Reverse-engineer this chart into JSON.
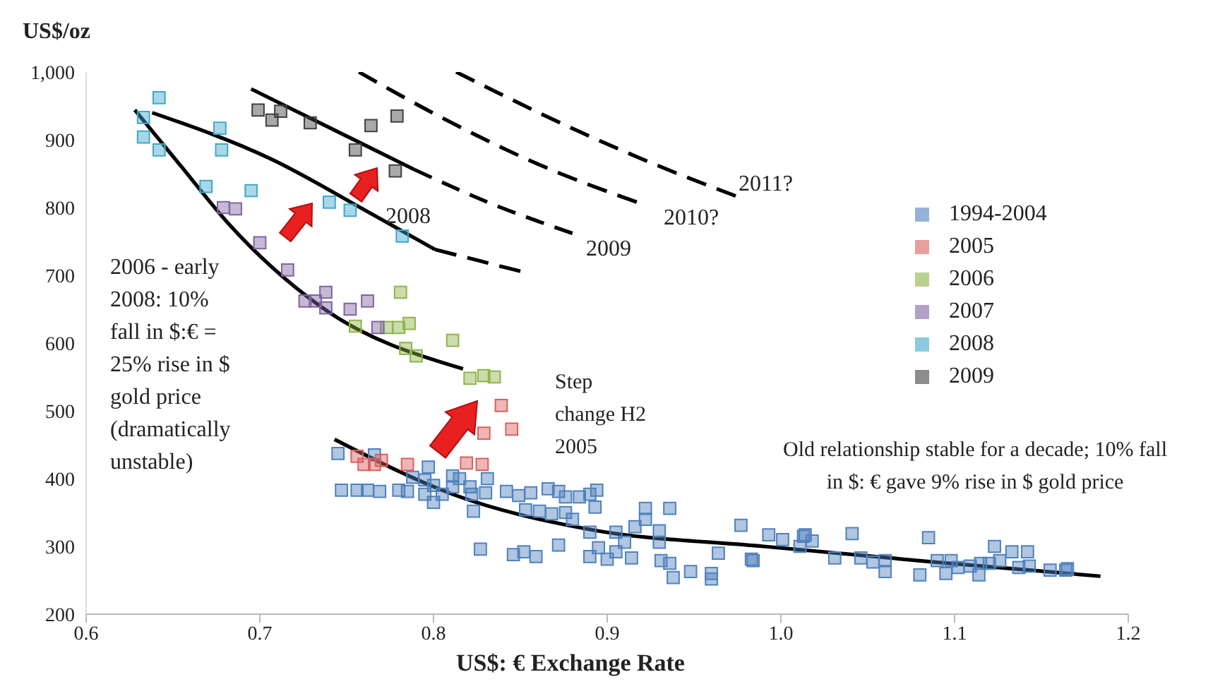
{
  "chart_data": {
    "type": "scatter",
    "xlabel": "US$: € Exchange Rate",
    "ylabel": "US$/oz",
    "xlim": [
      0.6,
      1.2
    ],
    "xticks": [
      0.6,
      0.7,
      0.8,
      0.9,
      {
        "value": 1,
        "label": "1.0"
      },
      1.1,
      1.2
    ],
    "ylim": [
      200,
      1000
    ],
    "yticks": [
      200,
      300,
      400,
      500,
      600,
      700,
      800,
      900,
      {
        "value": 1000,
        "label": "1,000"
      }
    ],
    "grid": false,
    "legend": "right",
    "marker": "square",
    "series": [
      {
        "name": "1994-2004",
        "color": "#4f81bd",
        "x": [
          0.745,
          0.747,
          0.756,
          0.762,
          0.769,
          0.766,
          0.78,
          0.785,
          0.788,
          0.795,
          0.797,
          0.795,
          0.8,
          0.8,
          0.805,
          0.811,
          0.815,
          0.811,
          0.821,
          0.822,
          0.823,
          0.83,
          0.831,
          0.827,
          0.842,
          0.849,
          0.856,
          0.846,
          0.852,
          0.859,
          0.853,
          0.861,
          0.866,
          0.872,
          0.876,
          0.868,
          0.876,
          0.88,
          0.872,
          0.884,
          0.89,
          0.894,
          0.893,
          0.89,
          0.89,
          0.895,
          0.9,
          0.905,
          0.91,
          0.916,
          0.922,
          0.922,
          0.93,
          0.93,
          0.936,
          0.931,
          0.936,
          0.938,
          0.948,
          0.96,
          0.96,
          0.964,
          0.977,
          0.983,
          0.914,
          0.905,
          0.993,
          1.001,
          1.013,
          1.014,
          1.018,
          1.011,
          0.984,
          1.031,
          1.041,
          1.046,
          1.053,
          1.06,
          1.06,
          1.08,
          1.085,
          1.09,
          1.095,
          1.098,
          1.102,
          1.109,
          1.114,
          1.115,
          1.12,
          1.123,
          1.126,
          1.133,
          1.137,
          1.142,
          1.143,
          1.155,
          1.165,
          1.164
        ],
        "values": [
          437,
          383,
          383,
          383,
          381,
          435,
          383,
          381,
          402,
          398,
          417,
          377,
          390,
          365,
          377,
          404,
          400,
          388,
          388,
          377,
          352,
          379,
          400,
          296,
          381,
          375,
          379,
          288,
          292,
          285,
          354,
          352,
          385,
          381,
          373,
          348,
          350,
          340,
          302,
          373,
          377,
          383,
          358,
          321,
          285,
          298,
          281,
          321,
          306,
          329,
          356,
          340,
          323,
          306,
          356,
          279,
          275,
          254,
          263,
          260,
          252,
          290,
          331,
          281,
          283,
          292,
          317,
          310,
          315,
          317,
          308,
          300,
          279,
          283,
          319,
          283,
          277,
          279,
          263,
          258,
          313,
          279,
          260,
          279,
          269,
          271,
          258,
          275,
          275,
          300,
          279,
          292,
          269,
          292,
          271,
          265,
          267,
          265
        ]
      },
      {
        "name": "2005",
        "color": "#d9605e",
        "x": [
          0.839,
          0.829,
          0.845,
          0.756,
          0.76,
          0.766,
          0.77,
          0.785,
          0.819,
          0.828
        ],
        "values": [
          508,
          467,
          473,
          433,
          421,
          421,
          427,
          421,
          423,
          421
        ]
      },
      {
        "name": "2006",
        "color": "#8eb44a",
        "x": [
          0.781,
          0.755,
          0.773,
          0.78,
          0.786,
          0.811,
          0.784,
          0.79,
          0.821,
          0.829,
          0.835
        ],
        "values": [
          675,
          625,
          623,
          623,
          629,
          604,
          592,
          581,
          548,
          552,
          550
        ]
      },
      {
        "name": "2007",
        "color": "#8064a2",
        "x": [
          0.679,
          0.686,
          0.7,
          0.716,
          0.726,
          0.732,
          0.738,
          0.738,
          0.752,
          0.762,
          0.768
        ],
        "values": [
          800,
          798,
          748,
          708,
          662,
          662,
          675,
          652,
          650,
          662,
          623
        ]
      },
      {
        "name": "2008",
        "color": "#3fa9c9",
        "x": [
          0.642,
          0.633,
          0.633,
          0.642,
          0.677,
          0.678,
          0.669,
          0.695,
          0.74,
          0.752,
          0.782
        ],
        "values": [
          962,
          933,
          904,
          885,
          917,
          885,
          831,
          825,
          808,
          796,
          758
        ]
      },
      {
        "name": "2009",
        "color": "#404040",
        "x": [
          0.699,
          0.712,
          0.707,
          0.729,
          0.764,
          0.779,
          0.755,
          0.778
        ],
        "values": [
          944,
          942,
          929,
          925,
          921,
          935,
          885,
          854
        ]
      },
      {
        "type": "line",
        "color": "#000000",
        "line_style": "solid",
        "marker": "none",
        "x": [
          0.743,
          0.811,
          0.89,
          0.99,
          1.088,
          1.184
        ],
        "values": [
          458,
          377,
          325,
          300,
          277,
          256
        ]
      },
      {
        "type": "line",
        "color": "#000000",
        "line_style": "solid",
        "marker": "none",
        "x": [
          0.628,
          0.654,
          0.681,
          0.735,
          0.817
        ],
        "values": [
          944,
          863,
          779,
          654,
          562
        ]
      },
      {
        "type": "line",
        "color": "#000000",
        "line_style": "solid",
        "marker": "none",
        "x": [
          0.638,
          0.707,
          0.762,
          0.801
        ],
        "values": [
          940,
          871,
          794,
          738
        ]
      },
      {
        "type": "line",
        "color": "#000000",
        "line_style": "dashed",
        "marker": "none",
        "x": [
          0.801,
          0.827,
          0.85
        ],
        "values": [
          738,
          721,
          706
        ]
      },
      {
        "type": "line",
        "color": "#000000",
        "line_style": "solid",
        "marker": "none",
        "x": [
          0.695,
          0.789
        ],
        "values": [
          975,
          856
        ]
      },
      {
        "type": "line",
        "color": "#000000",
        "line_style": "dashed",
        "marker": "none",
        "x": [
          0.789,
          0.835,
          0.88
        ],
        "values": [
          856,
          804,
          762
        ]
      },
      {
        "type": "line",
        "color": "#000000",
        "line_style": "dashed",
        "marker": "none",
        "x": [
          0.757,
          0.803,
          0.862,
          0.917
        ],
        "values": [
          1000,
          935,
          862,
          808
        ]
      },
      {
        "type": "line",
        "color": "#000000",
        "line_style": "dashed",
        "marker": "none",
        "x": [
          0.813,
          0.884,
          0.931,
          0.974
        ],
        "values": [
          1000,
          912,
          860,
          817
        ]
      }
    ],
    "annotations": [
      "2008",
      "2009",
      "2010?",
      "2011?",
      "2006 - early 2008: 10% fall in $:€ = 25% rise in $ gold price (dramatically unstable)",
      "Step change H2 2005",
      "Old relationship stable for a decade; 10% fall in $: € gave 9% rise in $ gold price"
    ]
  }
}
